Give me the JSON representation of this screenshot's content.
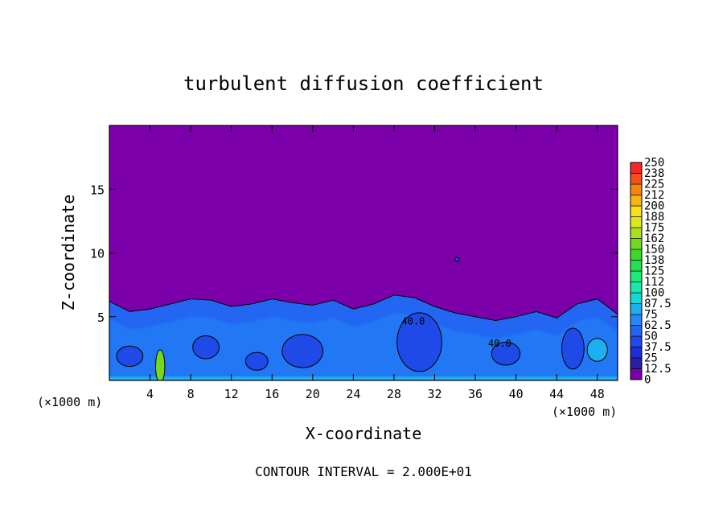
{
  "chart_data": {
    "type": "heatmap",
    "title": "turbulent diffusion coefficient",
    "xlabel": "X-coordinate",
    "ylabel": "Z-coordinate",
    "x_unit": "(×1000 m)",
    "z_unit": "(×1000 m)",
    "footer": "CONTOUR INTERVAL = 2.000E+01",
    "xlim": [
      0,
      50
    ],
    "ylim": [
      0,
      20
    ],
    "x_ticks": [
      4,
      8,
      12,
      16,
      20,
      24,
      28,
      32,
      36,
      40,
      44,
      48
    ],
    "x_tick_labels": [
      "4",
      "8",
      "12",
      "16",
      "20",
      "24",
      "28",
      "32",
      "36",
      "40",
      "44",
      "48"
    ],
    "y_ticks": [
      5,
      10,
      15
    ],
    "y_tick_labels": [
      "5",
      "10",
      "15"
    ],
    "colorbar": {
      "levels": [
        0,
        12.5,
        25,
        37.5,
        50,
        62.5,
        75,
        87.5,
        100,
        112,
        125,
        138,
        150,
        162,
        175,
        188,
        200,
        212,
        225,
        238,
        250
      ],
      "labels": [
        "0",
        "12.5",
        "25",
        "37.5",
        "50",
        "62.5",
        "75",
        "87.5",
        "100",
        "112",
        "125",
        "138",
        "150",
        "162",
        "175",
        "188",
        "200",
        "212",
        "225",
        "238",
        "250"
      ],
      "colors": [
        "#7b00aa",
        "#2a1fa6",
        "#1c2ed8",
        "#1f4ae8",
        "#2266f2",
        "#2488f6",
        "#1cb0ee",
        "#16d8d6",
        "#18e8a8",
        "#1ee87a",
        "#22e050",
        "#3fd62c",
        "#74d822",
        "#a8e01e",
        "#dce81a",
        "#f8e018",
        "#f8b414",
        "#f88410",
        "#f4501c",
        "#f02828",
        "#f07878"
      ]
    },
    "background_value": 0,
    "boundary_layer_top": [
      [
        0,
        6.2
      ],
      [
        2,
        5.4
      ],
      [
        4,
        5.6
      ],
      [
        6,
        6.0
      ],
      [
        8,
        6.4
      ],
      [
        10,
        6.3
      ],
      [
        12,
        5.8
      ],
      [
        14,
        6.0
      ],
      [
        16,
        6.4
      ],
      [
        18,
        6.1
      ],
      [
        20,
        5.9
      ],
      [
        22,
        6.3
      ],
      [
        24,
        5.6
      ],
      [
        26,
        6.0
      ],
      [
        28,
        6.7
      ],
      [
        30,
        6.5
      ],
      [
        32,
        5.8
      ],
      [
        34,
        5.3
      ],
      [
        36,
        5.0
      ],
      [
        38,
        4.7
      ],
      [
        40,
        5.0
      ],
      [
        42,
        5.4
      ],
      [
        44,
        4.9
      ],
      [
        46,
        6.0
      ],
      [
        48,
        6.4
      ],
      [
        50,
        5.2
      ]
    ],
    "features": [
      {
        "x": 30.5,
        "z": 3.0,
        "rx": 2.2,
        "rz": 2.3,
        "value": 40,
        "label": "40.0"
      },
      {
        "x": 19.0,
        "z": 2.3,
        "rx": 2.0,
        "rz": 1.3,
        "value": 40
      },
      {
        "x": 9.5,
        "z": 2.6,
        "rx": 1.3,
        "rz": 0.9,
        "value": 40
      },
      {
        "x": 14.5,
        "z": 1.5,
        "rx": 1.1,
        "rz": 0.7,
        "value": 40
      },
      {
        "x": 2.0,
        "z": 1.9,
        "rx": 1.3,
        "rz": 0.8,
        "value": 40
      },
      {
        "x": 39.0,
        "z": 2.1,
        "rx": 1.4,
        "rz": 0.9,
        "value": 40,
        "label": "40.0"
      },
      {
        "x": 45.6,
        "z": 2.5,
        "rx": 1.1,
        "rz": 1.6,
        "value": 40
      },
      {
        "x": 5.0,
        "z": 1.1,
        "rx": 0.45,
        "rz": 1.3,
        "value": 150
      },
      {
        "x": 48.0,
        "z": 2.4,
        "rx": 1.0,
        "rz": 0.9,
        "value": 75
      },
      {
        "x": 34.2,
        "z": 9.5,
        "rx": 0.2,
        "rz": 0.15,
        "value": 40
      }
    ]
  }
}
